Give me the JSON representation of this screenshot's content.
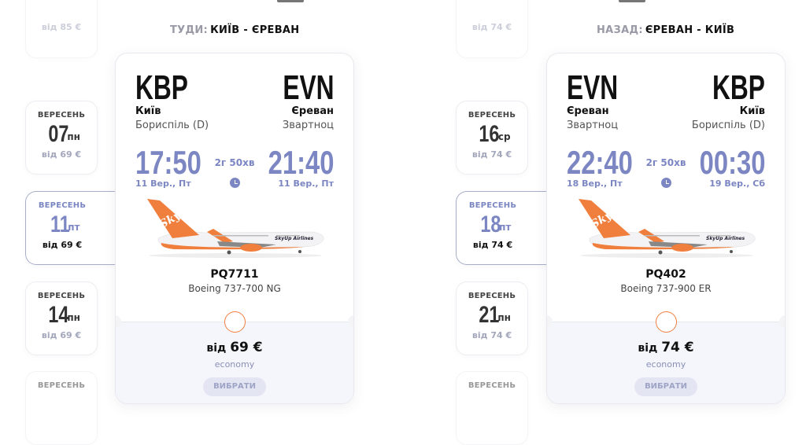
{
  "colors": {
    "accent": "#7b86c2",
    "brand_orange": "#f07e3c"
  },
  "directions": [
    {
      "label": "ТУДИ:",
      "route": "КИЇВ - ЄРЕВАН",
      "dates": [
        {
          "month": "",
          "day": "",
          "weekday": "",
          "price": "від 85 €",
          "state": "faded"
        },
        {
          "month": "ВЕРЕСЕНЬ",
          "day": "07",
          "weekday": "пн",
          "price": "від 69 €",
          "state": "normal"
        },
        {
          "month": "ВЕРЕСЕНЬ",
          "day": "11",
          "weekday": "пт",
          "price": "від 69 €",
          "state": "selected"
        },
        {
          "month": "ВЕРЕСЕНЬ",
          "day": "14",
          "weekday": "пн",
          "price": "від 69 €",
          "state": "normal"
        },
        {
          "month": "ВЕРЕСЕНЬ",
          "day": "",
          "weekday": "",
          "price": "",
          "state": "faded"
        }
      ],
      "flight": {
        "from_code": "KBP",
        "from_city": "Київ",
        "from_airport": "Бориспіль (D)",
        "to_code": "EVN",
        "to_city": "Єреван",
        "to_airport": "Звартноц",
        "dep_time": "17:50",
        "dep_date": "11 Вер., Пт",
        "arr_time": "21:40",
        "arr_date": "11 Вер., Пт",
        "duration": "2г 50хв",
        "flight_no": "PQ7711",
        "aircraft": "Boeing 737-700 NG",
        "price_prefix": "від",
        "price": "69 €",
        "fare_class": "economy",
        "select_label": "ВИБРАТИ",
        "airline_logo": "SkyUp"
      }
    },
    {
      "label": "НАЗАД:",
      "route": "ЄРЕВАН - КИЇВ",
      "dates": [
        {
          "month": "",
          "day": "",
          "weekday": "",
          "price": "від 74 €",
          "state": "faded"
        },
        {
          "month": "ВЕРЕСЕНЬ",
          "day": "16",
          "weekday": "ср",
          "price": "від 74 €",
          "state": "normal"
        },
        {
          "month": "ВЕРЕСЕНЬ",
          "day": "18",
          "weekday": "пт",
          "price": "від 74 €",
          "state": "selected"
        },
        {
          "month": "ВЕРЕСЕНЬ",
          "day": "21",
          "weekday": "пн",
          "price": "від 74 €",
          "state": "normal"
        },
        {
          "month": "ВЕРЕСЕНЬ",
          "day": "",
          "weekday": "",
          "price": "",
          "state": "faded"
        }
      ],
      "flight": {
        "from_code": "EVN",
        "from_city": "Єреван",
        "from_airport": "Звартноц",
        "to_code": "KBP",
        "to_city": "Київ",
        "to_airport": "Бориспіль (D)",
        "dep_time": "22:40",
        "dep_date": "18 Вер., Пт",
        "arr_time": "00:30",
        "arr_date": "19 Вер., Сб",
        "duration": "2г 50хв",
        "flight_no": "PQ402",
        "aircraft": "Boeing 737-900 ER",
        "price_prefix": "від",
        "price": "74 €",
        "fare_class": "economy",
        "select_label": "ВИБРАТИ",
        "airline_logo": "SkyUp"
      }
    }
  ]
}
